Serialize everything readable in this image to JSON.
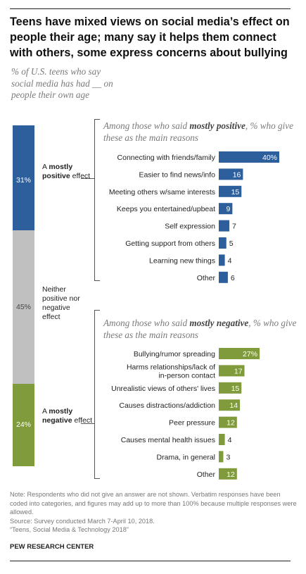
{
  "title": "Teens have mixed views on social media’s effect on people their age; many say it helps them connect with others, some express concerns about bullying",
  "subtitle": "% of U.S. teens who say social media has had __ on people their own age",
  "colors": {
    "positive": "#2e5f9d",
    "neutral": "#c0c0c0",
    "negative": "#809b3b"
  },
  "stack": {
    "positive": {
      "value": 31,
      "label": "31%",
      "pre": "A ",
      "bold": "mostly positive",
      "post": " effect"
    },
    "neutral": {
      "value": 45,
      "label": "45%",
      "text": "Neither positive nor negative effect"
    },
    "negative": {
      "value": 24,
      "label": "24%",
      "pre": "A ",
      "bold": "mostly negative",
      "post": " effect"
    }
  },
  "panels": {
    "positive": {
      "head_pre": "Among those who said ",
      "head_bold": "mostly positive",
      "head_post": ", % who give these as the main reasons"
    },
    "negative": {
      "head_pre": "Among those who said ",
      "head_bold": "mostly negative",
      "head_post": ", % who give these as the main reasons"
    }
  },
  "chart_data": [
    {
      "type": "bar",
      "title": "Among those who said mostly positive, % who give these as the main reasons",
      "categories": [
        "Connecting with friends/family",
        "Easier to find news/info",
        "Meeting others w/same interests",
        "Keeps you entertained/upbeat",
        "Self expression",
        "Getting support from others",
        "Learning new things",
        "Other"
      ],
      "values": [
        40,
        16,
        15,
        9,
        7,
        5,
        4,
        6
      ],
      "labels": [
        "40%",
        "16",
        "15",
        "9",
        "7",
        "5",
        "4",
        "6"
      ],
      "color": "#2e5f9d"
    },
    {
      "type": "bar",
      "title": "Among those who said mostly negative, % who give these as the main reasons",
      "categories": [
        "Bullying/rumor spreading",
        "Harms relationships/lack of in-person contact",
        "Unrealistic views of others' lives",
        "Causes distractions/addiction",
        "Peer pressure",
        "Causes mental health issues",
        "Drama, in general",
        "Other"
      ],
      "values": [
        27,
        17,
        15,
        14,
        12,
        4,
        3,
        12
      ],
      "labels": [
        "27%",
        "17",
        "15",
        "14",
        "12",
        "4",
        "3",
        "12"
      ],
      "color": "#809b3b"
    }
  ],
  "notes": {
    "note": "Note: Respondents who did not give an answer are not shown. Verbatim responses have been coded into categories, and figures may add up to more than 100% because multiple responses were allowed.",
    "source": "Source: Survey conducted March 7-April 10, 2018.",
    "report": "“Teens, Social Media & Technology 2018”",
    "org": "PEW RESEARCH CENTER"
  }
}
